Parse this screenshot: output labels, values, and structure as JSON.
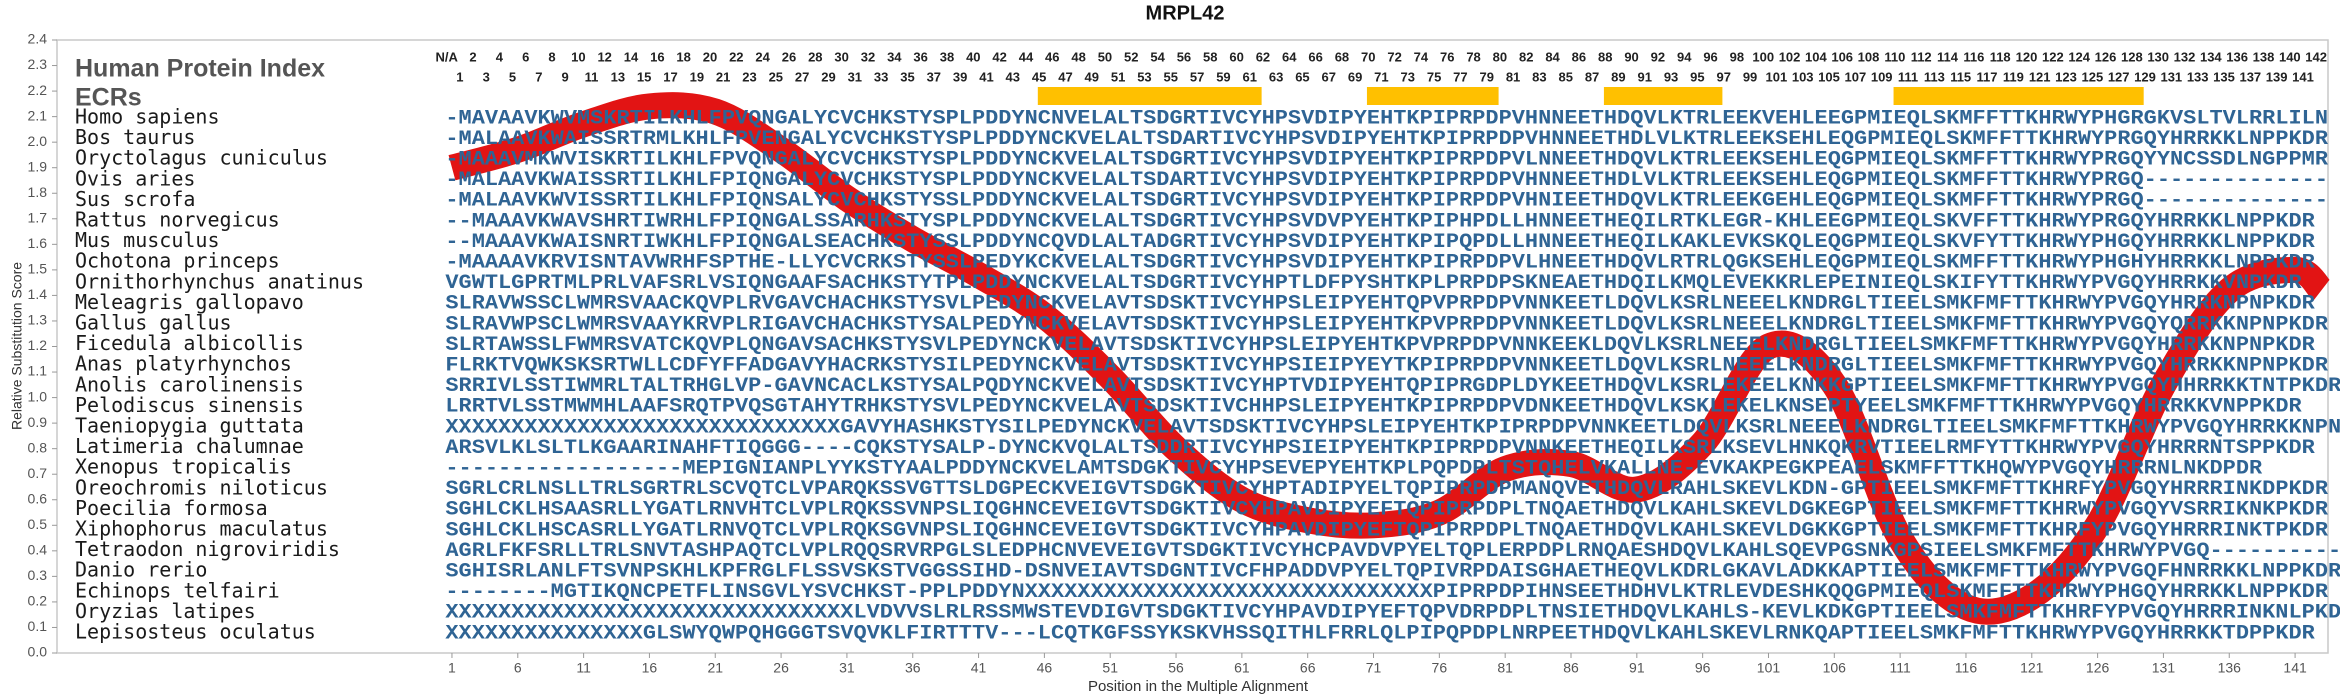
{
  "chart_data": {
    "type": "line",
    "title": "MRPL42",
    "xlabel": "Position in the Multiple Alignment",
    "ylabel": "Relative Substitution Score",
    "index_label": "Human Protein Index",
    "ecr_label": "ECRs",
    "color": "#e00000",
    "ecr_color": "#ffc000",
    "xlim": [
      -29,
      143.5
    ],
    "ylim": [
      0,
      2.4
    ],
    "xticks": [
      1,
      6,
      11,
      16,
      21,
      26,
      31,
      36,
      41,
      46,
      51,
      56,
      61,
      66,
      71,
      76,
      81,
      86,
      91,
      96,
      101,
      106,
      111,
      116,
      121,
      126,
      131,
      136,
      141
    ],
    "yticks": [
      {
        "value": 0,
        "label": "0.0"
      },
      0.1,
      0.2,
      0.3,
      0.4,
      0.5,
      0.6,
      0.7,
      0.8,
      0.9,
      {
        "value": 1,
        "label": "1.0"
      },
      1.1,
      1.2,
      1.3,
      1.4,
      1.5,
      1.6,
      1.7,
      1.8,
      1.9,
      {
        "value": 2,
        "label": "2.0"
      },
      2.1,
      2.2,
      2.3,
      2.4
    ],
    "x": [
      1,
      6,
      11,
      16,
      21,
      26,
      31,
      36,
      41,
      46,
      51,
      56,
      61,
      66,
      71,
      76,
      81,
      86,
      91,
      96,
      101,
      106,
      111,
      116,
      121,
      126,
      131,
      136,
      141,
      143
    ],
    "values": [
      1.9,
      1.97,
      2.07,
      2.14,
      2.12,
      1.97,
      1.78,
      1.62,
      1.48,
      1.32,
      1.08,
      0.8,
      0.6,
      0.52,
      0.5,
      0.55,
      0.72,
      0.74,
      0.64,
      0.82,
      1.2,
      1.05,
      0.45,
      0.18,
      0.22,
      0.5,
      1.05,
      1.42,
      1.5,
      1.42
    ],
    "ecrs": [
      {
        "start": 46,
        "end": 62
      },
      {
        "start": 71,
        "end": 80
      },
      {
        "start": 89,
        "end": 97
      },
      {
        "start": 111,
        "end": 129
      }
    ],
    "header_even": [
      "N/A",
      "2",
      "4",
      "6",
      "8",
      "10",
      "12",
      "14",
      "16",
      "18",
      "20",
      "22",
      "24",
      "26",
      "28",
      "30",
      "32",
      "34",
      "36",
      "38",
      "40",
      "42",
      "44",
      "46",
      "48",
      "50",
      "52",
      "54",
      "56",
      "58",
      "60",
      "62",
      "64",
      "66",
      "68",
      "70",
      "72",
      "74",
      "76",
      "78",
      "80",
      "82",
      "84",
      "86",
      "88",
      "90",
      "92",
      "94",
      "96",
      "98",
      "100",
      "102",
      "104",
      "106",
      "108",
      "110",
      "112",
      "114",
      "116",
      "118",
      "120",
      "122",
      "124",
      "126",
      "128",
      "130",
      "132",
      "134",
      "136",
      "138",
      "140",
      "142"
    ],
    "header_odd": [
      "1",
      "3",
      "5",
      "7",
      "9",
      "11",
      "13",
      "15",
      "17",
      "19",
      "21",
      "23",
      "25",
      "27",
      "29",
      "31",
      "33",
      "35",
      "37",
      "39",
      "41",
      "43",
      "45",
      "47",
      "49",
      "51",
      "53",
      "55",
      "57",
      "59",
      "61",
      "63",
      "65",
      "67",
      "69",
      "71",
      "73",
      "75",
      "77",
      "79",
      "81",
      "83",
      "85",
      "87",
      "89",
      "91",
      "93",
      "95",
      "97",
      "99",
      "101",
      "103",
      "105",
      "107",
      "109",
      "111",
      "113",
      "115",
      "117",
      "119",
      "121",
      "123",
      "125",
      "127",
      "129",
      "131",
      "133",
      "135",
      "137",
      "139",
      "141"
    ],
    "species": [
      "Homo sapiens",
      "Bos taurus",
      "Oryctolagus cuniculus",
      "Ovis aries",
      "Sus scrofa",
      "Rattus norvegicus",
      "Mus musculus",
      "Ochotona princeps",
      "Ornithorhynchus anatinus",
      "Meleagris gallopavo",
      "Gallus gallus",
      "Ficedula albicollis",
      "Anas platyrhynchos",
      "Anolis carolinensis",
      "Pelodiscus sinensis",
      "Taeniopygia guttata",
      "Latimeria chalumnae",
      "Xenopus tropicalis",
      "Oreochromis niloticus",
      "Poecilia formosa",
      "Xiphophorus maculatus",
      "Tetraodon nigroviridis",
      "Danio rerio",
      "Echinops telfairi",
      "Oryzias latipes",
      "Lepisosteus oculatus"
    ],
    "sequences": [
      "-MAVAAVKWVMSKRTILKHLFPVQNGALYCVCHKSTYSPLPDDYNCNVELALTSDGRTIVCYHPSVDIPYEHTKPIPRPDPVHNNEETHDQVLKTRLEEKVEHLEEGPMIEQLSKMFFTTKHRWYPHGRGKVSLTVLRRLILN",
      "-MALAAVKWAISSRTRMLKHLFPVENGALYCVCHKSTYSPLPDDYNCKVELALTSDARTIVCYHPSVDIPYEHTKPIPRPDPVHNNEETHDLVLKTRLEEKSEHLEQGPMIEQLSKMFFTTKHRWYPRGQYHRRKKLNPPKDR",
      "-MAAAVMKWVISKRTILKHLFPVQNGALYCVCHKSTYSPLPDDYNCKVELALTSDGRTIVCYHPSVDIPYEHTKPIPRPDPVLNNEETHDQVLKTRLEEKSEHLEQGPMIEQLSKMFFTTKHRWYPRGQYYNCSSDLNGPPMR",
      "-MALAAVKWAISSRTILKHLFPIQNGALYCVCHKSTYSPLPDDYNCKVELALTSDARTIVCYHPSVDIPYEHTKPIPRPDPVHNNEETHDLVLKTRLEEKSEHLEQGPMIEQLSKMFFTTKHRWYPRGQ--------------",
      "-MALAAVKWVISSRTILKHLFPIQNSALYCVCHKSTYSSLPDDYNCKVELALTSDGRTIVCYHPSVDIPYEHTKPIPRPDPVHNIEETHDQVLKTRLEEKGEHLEQGPMIEQLSKMFFTTKHRWYPRGQ--------------",
      "--MAAAVKWAVSHRTIWRHLFPIQNGALSSARHKSTYSPLPDDYNCKVELALTSDGRTIVCYHPSVDVPYEHTKPIPHPDLLHNNEETHEQILRTKLEGR-KHLEEGPMIEQLSKVFFTTKHRWYPRGQYHRRKKLNPPKDR",
      "--MAAAVKWAISNRTIWKHLFPIQNGALSEACHKSTYSSLPDDYNCQVDLALTADGRTIVCYHPSVDIPYEHTKPIPQPDLLHNNEETHEQILKAKLEVKSKQLEQGPMIEQLSKVFYTTKHRWYPHGQYHRRKKLNPPKDR",
      "-MAAAAVKRVISNTAVWRHFSPTHE-LLYCVCRKSTYSSLPEDYKCKVELALTSDGRTIVCYHPSVDIPYEHTKPIPRPDPVLHNEETHDQVLRTRLQGKSEHLEQGPMIEQLSKMFFTTKHRWYPHGHYHRRKKLNPPKDR",
      "VGWTLGPRTMLPRLVAFSRLVSIQNGAAFSACHKSTYTPLPDDYNCKVELALTSDGRTIVCYHPTLDFPYSHTKPLPRPDPSKNEAETHDQILKMQLEVEKKRLEPEINIEQLSKIFYTTKHRWYPVGQYHRRKKVNPKDR",
      "SLRAVWSSCLWMRSVAACKQVPLRVGAVCHACHKSTYSVLPEDYNCKVELAVTSDSKTIVCYHPSLEIPYEHTQPVPRPDPVNNKEETLDQVLKSRLNEEELKNDRGLTIEELSMKFMFTTKHRWYPVGQYHRRKNPNPKDR",
      "SLRAVWPSCLWMRSVAAYKRVPLRIGAVCHACHKSTYSALPEDYNCKVELAVTSDSKTIVCYHPSLEIPYEHTKPVPRPDPVNNKEETLDQVLKSRLNEEELKNDRGLTIEELSMKFMFTTKHRWYPVGQYQRRKKNPNPKDR",
      "SLRTAWSSLFWMRSVATCKQVPLQNGAVSACHKSTYSVLPEDYNCKVELAVTSDSKTIVCYHPSLEIPYEHTKPVPRPDPVNNKEEKLDQVLKSRLNEEELKNDRGLTIEELSMKFMFTTKHRWYPVGQYHRRKKNPNPKDR",
      "FLRKTVQWKSKSRTWLLCDFYFFADGAVYHACRKSTYSILPEDYNCKVELAVTSDSKTIVCYHPSIEIPYEYTKPIPRPDPVNNKEETLDQVLKSRLNEEELKNDRGLTIEELSMKFMFTTKHRWYPVGQYHRRKKNPNPKDR",
      "SRRIVLSSTIWMRLTALTRHGLVP-GAVNCACLKSTYSALPQDYNCKVELAVTSDSKTIVCYHPTVDIPYEHTQPIPRGDPLDYKEETHDQVLKSRLEKEELKNKKGPTIEELSMKFMFTTKHRWYPVGQYHHRRKKTNTPKDR",
      "LRRTVLSSTMWMHLAAFSRQTPVQSGTAHYTRHKSTYSVLPEDYNCKVELAVTSDSKTIVCHHPSLEIPYEHTKPIPRPDPVDNKEETHDQVLKSKLEKELKNSEPTYEELSMKFMFTTKHRWYPVGQYHRRKKVNPPKDR",
      "XXXXXXXXXXXXXXXXXXXXXXXXXXXXXXGAVYHASHKSTYSILPEDYNCKVELAVTSDSKTIVCYHPSLEIPYEHTKPIPRPDPVNNKEETLDQVLKSRLNEEELKNDRGLTIEELSMKFMFTTKHRWYPVGQYHRRKKNPNPKDR",
      "ARSVLKLSLTLKGAARINAHFTIQGGG----CQKSTYSALP-DYNCKVQLALTSDDRTIVCYHPSIEIPYEHTKPIPRPDPVNNKEETHEQILKSRLKSEVLHNKQKRVTIEELRMFYTTKHRWYPVGQYHRRRNTSPPKDR",
      "------------------MEPIGNIANPLYYKSTYAALPDDYNCKVELAMTSDGKTIVCYHPSEVEPYEHTKPLPQPDPLTSTQHELVKALLNE-EVKAKPEGKPEAELSKMFFTTKHQWYPVGQYHRRRNLNKDPDR",
      "SGRLCRLNSLLTRLSGRTRLSCVQTCLVPARQKSSVGTTSLDGPECKVEIGVTSDGKTIVCYHPTADIPYELTQPIPRPDPMANQVETHDQVLRAHLSKEVLKDN-GPTIEELSMKFMFTTKHRFYPVGQYHRRRINKDPKDR",
      "SGHLCKLHSAASRLLYGATLRNVHTCLVPLRQKSSVNPSLIQGHNCEVEIGVTSDGKTIVCYHPAVDIPYEFTQPIPRPDPLTNQAETHDQVLKAHLSKEVLDGKEGPTIEELSMKFMFTTKHRWYPVGQYVSRRIKNKPKDR",
      "SGHLCKLHSCASRLLYGATLRNVQTCLVPLRQKSGVNPSLIQGHNCEVEIGVTSDGKTIVCYHPAVDIPYEFTQPIPRPDPLTNQAETHDQVLKAHLSKEVLDGKKGPTIEELSMKFMFTTKHRFYPVGQYHRRRINKTPKDR",
      "AGRLFKFSRLLTRLSNVTASHPAQTCLVPLRQQSRVRPGLSLEDPHCNVEVEIGVTSDGKTIVCYHCPAVDVPYELTQPLERPDPLRNQAESHDQVLKAHLSQEVPGSNKGPSIEELSMKFMFTTKHRWYPVGQ------------",
      "SGHISRLANLFTSVNPSKHLKPFRGLFLSSVSKSTVGGSSIHD-DSNVEIAVTSDGNTIVCFHPADDVPYELTQPIVRPDAISGHAETHEQVLKDRLGKAVLADKKAPTIEELSMKFMFTTKHRWYPVGQFHNRRKKLNPPKDR",
      "--------MGTIKQNCPETFLINSGVLYSVCHKST-PPLPDDYNXXXXXXXXXXXXXXXXXXXXXXXXXXXXXXXPIPRPDPIHNSEETHDHVLKTRLEVDESHKQQGPMIEQLSKMFFTTKHRWYPHGQYHRRKKLNPPKDR",
      "XXXXXXXXXXXXXXXXXXXXXXXXXXXXXXXLVDVVSLRLRSSMWSTEVDIGVTSDGKTIVCYHPAVDIPYEFTQPVDRPDPLTNSIETHDQVLKAHLS-KEVLKDKGPTIEELSMKFMFTTKHRFYPVGQYHRRRINKNLPKDR",
      "XXXXXXXXXXXXXXXGLSWYQWPQHGGGTSVQVKLFIRTTTV---LCQTKGFSSYKSKVHSSQITHLFRRLQLPIPQPDPLNRPEETHDQVLKAHLSKEVLRNKQAPTIEELSMKFMFTTKHRWYPVGQYHRRKKTDPPKDR"
    ]
  }
}
